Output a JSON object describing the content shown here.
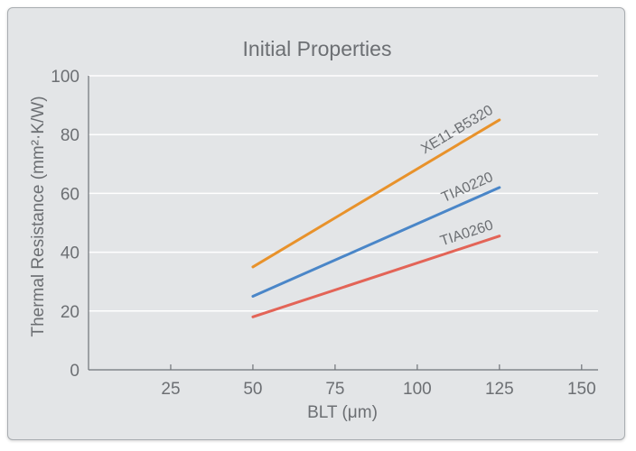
{
  "chart_data": {
    "type": "line",
    "title": "Initial Properties",
    "xlabel": "BLT (μm)",
    "ylabel": "Thermal Resistance  (mm²·K/W)",
    "xlim": [
      0,
      155
    ],
    "ylim": [
      0,
      100
    ],
    "xticks": [
      "25",
      "50",
      "75",
      "100",
      "125",
      "150"
    ],
    "yticks": [
      "0",
      "20",
      "40",
      "60",
      "80",
      "100"
    ],
    "grid": "horizontal",
    "legend": "none",
    "series": [
      {
        "name": "XE11-B5320",
        "color": "#e8922b",
        "x": [
          50,
          125
        ],
        "y": [
          35,
          85
        ]
      },
      {
        "name": "TIA0220",
        "color": "#4a86c8",
        "x": [
          50,
          125
        ],
        "y": [
          25,
          62
        ]
      },
      {
        "name": "TIA0260",
        "color": "#e36457",
        "x": [
          50,
          125
        ],
        "y": [
          18,
          45.5
        ]
      }
    ]
  }
}
